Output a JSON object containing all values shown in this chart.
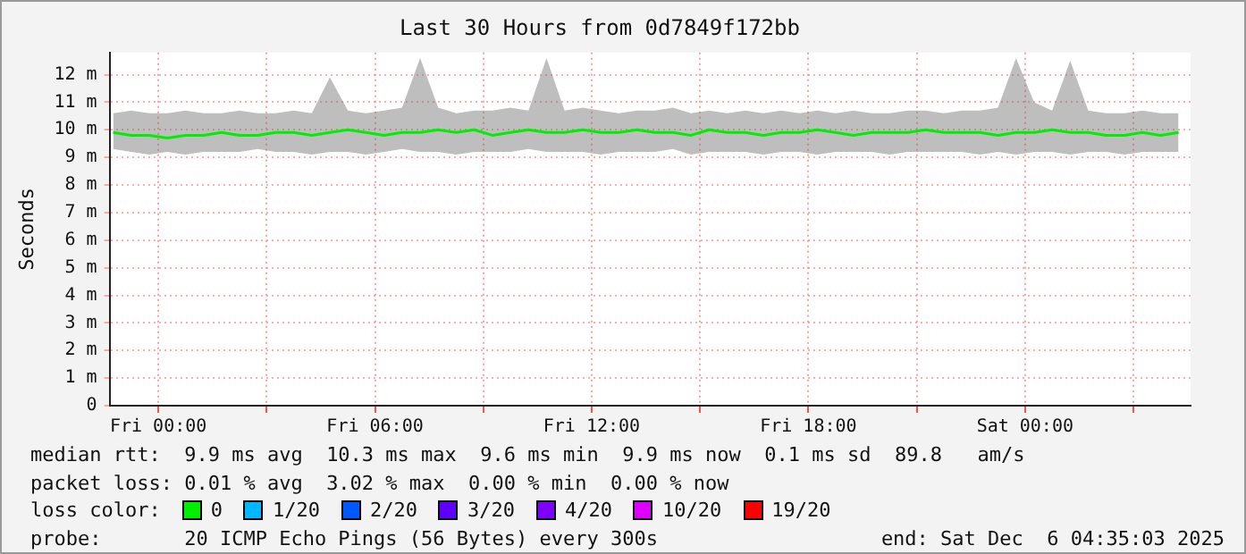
{
  "chart_data": {
    "type": "line",
    "title": "Last 30 Hours from 0d7849f172bb",
    "ylabel": "Seconds",
    "legend_title": "loss color:",
    "legend": "bottom",
    "grid": true,
    "marker": "none",
    "line_style": "solid",
    "xlim": [
      "2025-12-04T22:39",
      "2025-12-06T04:35"
    ],
    "xticks": [
      {
        "value": "2025-12-05T00:00",
        "label": "Fri 00:00"
      },
      {
        "value": "2025-12-05T03:00",
        "label": null
      },
      {
        "value": "2025-12-05T06:00",
        "label": "Fri 06:00"
      },
      {
        "value": "2025-12-05T09:00",
        "label": null
      },
      {
        "value": "2025-12-05T12:00",
        "label": "Fri 12:00"
      },
      {
        "value": "2025-12-05T15:00",
        "label": null
      },
      {
        "value": "2025-12-05T18:00",
        "label": "Fri 18:00"
      },
      {
        "value": "2025-12-05T21:00",
        "label": null
      },
      {
        "value": "2025-12-06T00:00",
        "label": "Sat 00:00"
      },
      {
        "value": "2025-12-06T03:00",
        "label": null
      }
    ],
    "ylim": [
      0,
      12.8
    ],
    "yticks": [
      0,
      {
        "value": 1,
        "label": "1 m"
      },
      {
        "value": 2,
        "label": "2 m"
      },
      {
        "value": 3,
        "label": "3 m"
      },
      {
        "value": 4,
        "label": "4 m"
      },
      {
        "value": 5,
        "label": "5 m"
      },
      {
        "value": 6,
        "label": "6 m"
      },
      {
        "value": 7,
        "label": "7 m"
      },
      {
        "value": 8,
        "label": "8 m"
      },
      {
        "value": 9,
        "label": "9 m"
      },
      {
        "value": 10,
        "label": "10 m"
      },
      {
        "value": 11,
        "label": "11 m"
      },
      {
        "value": 12,
        "label": "12 m"
      }
    ],
    "x": [
      "2025-12-04T22:45",
      "2025-12-04T23:15",
      "2025-12-04T23:45",
      "2025-12-05T00:15",
      "2025-12-05T00:45",
      "2025-12-05T01:15",
      "2025-12-05T01:45",
      "2025-12-05T02:15",
      "2025-12-05T02:45",
      "2025-12-05T03:15",
      "2025-12-05T03:45",
      "2025-12-05T04:15",
      "2025-12-05T04:45",
      "2025-12-05T05:15",
      "2025-12-05T05:45",
      "2025-12-05T06:15",
      "2025-12-05T06:45",
      "2025-12-05T07:15",
      "2025-12-05T07:45",
      "2025-12-05T08:15",
      "2025-12-05T08:45",
      "2025-12-05T09:15",
      "2025-12-05T09:45",
      "2025-12-05T10:15",
      "2025-12-05T10:45",
      "2025-12-05T11:15",
      "2025-12-05T11:45",
      "2025-12-05T12:15",
      "2025-12-05T12:45",
      "2025-12-05T13:15",
      "2025-12-05T13:45",
      "2025-12-05T14:15",
      "2025-12-05T14:45",
      "2025-12-05T15:15",
      "2025-12-05T15:45",
      "2025-12-05T16:15",
      "2025-12-05T16:45",
      "2025-12-05T17:15",
      "2025-12-05T17:45",
      "2025-12-05T18:15",
      "2025-12-05T18:45",
      "2025-12-05T19:15",
      "2025-12-05T19:45",
      "2025-12-05T20:15",
      "2025-12-05T20:45",
      "2025-12-05T21:15",
      "2025-12-05T21:45",
      "2025-12-05T22:15",
      "2025-12-05T22:45",
      "2025-12-05T23:15",
      "2025-12-05T23:45",
      "2025-12-06T00:15",
      "2025-12-06T00:45",
      "2025-12-06T01:15",
      "2025-12-06T01:45",
      "2025-12-06T02:15",
      "2025-12-06T02:45",
      "2025-12-06T03:15",
      "2025-12-06T03:45",
      "2025-12-06T04:15"
    ],
    "series": [
      {
        "name": "0",
        "color": "#00ee00",
        "values": [
          9.9,
          9.8,
          9.8,
          9.7,
          9.8,
          9.8,
          9.9,
          9.8,
          9.8,
          9.9,
          9.9,
          9.8,
          9.9,
          10,
          9.9,
          9.8,
          9.9,
          9.9,
          10,
          9.9,
          10,
          9.8,
          9.9,
          10,
          9.9,
          9.9,
          10,
          9.9,
          9.9,
          10,
          9.9,
          9.9,
          9.8,
          10,
          9.9,
          9.9,
          9.8,
          9.9,
          9.9,
          10,
          9.9,
          9.8,
          9.9,
          9.9,
          9.9,
          10,
          9.9,
          9.9,
          9.9,
          9.8,
          9.9,
          9.9,
          10,
          9.9,
          9.9,
          9.8,
          9.8,
          9.9,
          9.8,
          9.9
        ],
        "lower": [
          9.3,
          9.2,
          9.1,
          9.2,
          9.1,
          9.2,
          9.2,
          9.2,
          9.3,
          9.2,
          9.2,
          9.1,
          9.2,
          9.2,
          9.1,
          9.2,
          9.3,
          9.2,
          9.2,
          9.1,
          9.2,
          9.2,
          9.2,
          9.3,
          9.2,
          9.2,
          9.2,
          9.1,
          9.2,
          9.2,
          9.2,
          9.3,
          9.1,
          9.2,
          9.2,
          9.2,
          9.1,
          9.2,
          9.2,
          9.1,
          9.2,
          9.2,
          9.2,
          9.1,
          9.2,
          9.2,
          9.2,
          9.2,
          9.1,
          9.2,
          9.1,
          9.2,
          9.2,
          9.1,
          9.2,
          9.2,
          9.1,
          9.2,
          9.2,
          9.2
        ],
        "upper": [
          10.6,
          10.7,
          10.6,
          10.6,
          10.7,
          10.6,
          10.6,
          10.7,
          10.6,
          10.6,
          10.7,
          10.6,
          11.9,
          10.7,
          10.6,
          10.7,
          10.8,
          12.6,
          10.8,
          10.6,
          10.7,
          10.7,
          10.8,
          10.7,
          12.6,
          10.7,
          10.8,
          10.7,
          10.6,
          10.7,
          10.7,
          10.8,
          10.6,
          10.7,
          10.6,
          10.7,
          10.6,
          10.7,
          10.6,
          10.7,
          10.6,
          10.7,
          10.6,
          10.6,
          10.7,
          10.7,
          10.6,
          10.7,
          10.7,
          10.8,
          12.6,
          11,
          10.7,
          12.5,
          10.7,
          10.6,
          10.6,
          10.7,
          10.6,
          10.6
        ]
      },
      {
        "name": "1/20",
        "color": "#00b8ff",
        "values": [
          null,
          null,
          null,
          null,
          null,
          null,
          null,
          null,
          null,
          null,
          null,
          null,
          null,
          null,
          null,
          null,
          null,
          null,
          null,
          null,
          null,
          null,
          null,
          null,
          null,
          null,
          null,
          null,
          null,
          null,
          null,
          null,
          null,
          null,
          null,
          null,
          null,
          null,
          null,
          null,
          null,
          null,
          null,
          null,
          null,
          null,
          null,
          null,
          null,
          null,
          null,
          null,
          null,
          null,
          null,
          null,
          null,
          null,
          null,
          null
        ]
      },
      {
        "name": "2/20",
        "color": "#0059ff",
        "values": [
          null,
          null,
          null,
          null,
          null,
          null,
          null,
          null,
          null,
          null,
          null,
          null,
          null,
          null,
          null,
          null,
          null,
          null,
          null,
          null,
          null,
          null,
          null,
          null,
          null,
          null,
          null,
          null,
          null,
          null,
          null,
          null,
          null,
          null,
          null,
          null,
          null,
          null,
          null,
          null,
          null,
          null,
          null,
          null,
          null,
          null,
          null,
          null,
          null,
          null,
          null,
          null,
          null,
          null,
          null,
          null,
          null,
          null,
          null,
          null
        ]
      },
      {
        "name": "3/20",
        "color": "#5e00ff",
        "values": [
          null,
          null,
          null,
          null,
          null,
          null,
          null,
          null,
          null,
          null,
          null,
          null,
          null,
          null,
          null,
          null,
          null,
          null,
          null,
          null,
          null,
          null,
          null,
          null,
          null,
          null,
          null,
          null,
          null,
          null,
          null,
          null,
          null,
          null,
          null,
          null,
          null,
          null,
          null,
          null,
          null,
          null,
          null,
          null,
          null,
          null,
          null,
          null,
          null,
          null,
          null,
          null,
          null,
          null,
          null,
          null,
          null,
          null,
          null,
          null
        ]
      },
      {
        "name": "4/20",
        "color": "#7e00ff",
        "values": [
          null,
          null,
          null,
          null,
          null,
          null,
          null,
          null,
          null,
          null,
          null,
          null,
          null,
          null,
          null,
          null,
          null,
          null,
          null,
          null,
          null,
          null,
          null,
          null,
          null,
          null,
          null,
          null,
          null,
          null,
          null,
          null,
          null,
          null,
          null,
          null,
          null,
          null,
          null,
          null,
          null,
          null,
          null,
          null,
          null,
          null,
          null,
          null,
          null,
          null,
          null,
          null,
          null,
          null,
          null,
          null,
          null,
          null,
          null,
          null
        ]
      },
      {
        "name": "10/20",
        "color": "#dd00ff",
        "values": [
          null,
          null,
          null,
          null,
          null,
          null,
          null,
          null,
          null,
          null,
          null,
          null,
          null,
          null,
          null,
          null,
          null,
          null,
          null,
          null,
          null,
          null,
          null,
          null,
          null,
          null,
          null,
          null,
          null,
          null,
          null,
          null,
          null,
          null,
          null,
          null,
          null,
          null,
          null,
          null,
          null,
          null,
          null,
          null,
          null,
          null,
          null,
          null,
          null,
          null,
          null,
          null,
          null,
          null,
          null,
          null,
          null,
          null,
          null,
          null
        ]
      },
      {
        "name": "19/20",
        "color": "#ff0000",
        "values": [
          null,
          null,
          null,
          null,
          null,
          null,
          null,
          null,
          null,
          null,
          null,
          null,
          null,
          null,
          null,
          null,
          null,
          null,
          null,
          null,
          null,
          null,
          null,
          null,
          null,
          null,
          null,
          null,
          null,
          null,
          null,
          null,
          null,
          null,
          null,
          null,
          null,
          null,
          null,
          null,
          null,
          null,
          null,
          null,
          null,
          null,
          null,
          null,
          null,
          null,
          null,
          null,
          null,
          null,
          null,
          null,
          null,
          null,
          null,
          null
        ]
      }
    ],
    "annotations": [
      "median rtt:  9.9 ms avg  10.3 ms max  9.6 ms min  9.9 ms now  0.1 ms sd  89.8   am/s",
      "packet loss: 0.01 % avg  3.02 % max  0.00 % min  0.00 % now",
      "probe:       20 ICMP Echo Pings (56 Bytes) every 300s",
      "end: Sat Dec  6 04:35:03 2025"
    ]
  }
}
